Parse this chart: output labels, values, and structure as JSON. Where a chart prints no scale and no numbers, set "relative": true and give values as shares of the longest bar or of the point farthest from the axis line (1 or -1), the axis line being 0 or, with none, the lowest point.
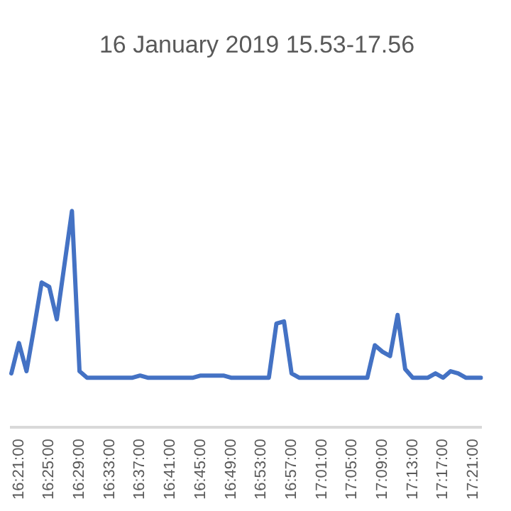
{
  "chart_data": {
    "type": "line",
    "title": "16 January 2019 15.53-17.56",
    "relative": true,
    "legend": false,
    "marker": "none",
    "line_style": "solid",
    "categories": [
      null,
      "16:21:00",
      null,
      null,
      null,
      "16:25:00",
      null,
      null,
      null,
      "16:29:00",
      null,
      null,
      null,
      "16:33:00",
      null,
      null,
      null,
      "16:37:00",
      null,
      null,
      null,
      "16:41:00",
      null,
      null,
      null,
      "16:45:00",
      null,
      null,
      null,
      "16:49:00",
      null,
      null,
      null,
      "16:53:00",
      null,
      null,
      null,
      "16:57:00",
      null,
      null,
      null,
      "17:01:00",
      null,
      null,
      null,
      "17:05:00",
      null,
      null,
      null,
      "17:09:00",
      null,
      null,
      null,
      "17:13:00",
      null,
      null,
      null,
      "17:17:00",
      null,
      null,
      null,
      "17:21:00",
      null
    ],
    "series": [
      {
        "color": "#4472c4",
        "values": [
          0.25,
          0.39,
          0.26,
          0.46,
          0.67,
          0.65,
          0.5,
          0.75,
          1,
          0.26,
          0.23,
          0.23,
          0.23,
          0.23,
          0.23,
          0.23,
          0.23,
          0.24,
          0.23,
          0.23,
          0.23,
          0.23,
          0.23,
          0.23,
          0.23,
          0.24,
          0.24,
          0.24,
          0.24,
          0.23,
          0.23,
          0.23,
          0.23,
          0.23,
          0.23,
          0.48,
          0.49,
          0.25,
          0.23,
          0.23,
          0.23,
          0.23,
          0.23,
          0.23,
          0.23,
          0.23,
          0.23,
          0.23,
          0.38,
          0.35,
          0.33,
          0.52,
          0.27,
          0.23,
          0.23,
          0.23,
          0.25,
          0.23,
          0.26,
          0.25,
          0.23,
          0.23,
          0.23
        ]
      }
    ]
  }
}
